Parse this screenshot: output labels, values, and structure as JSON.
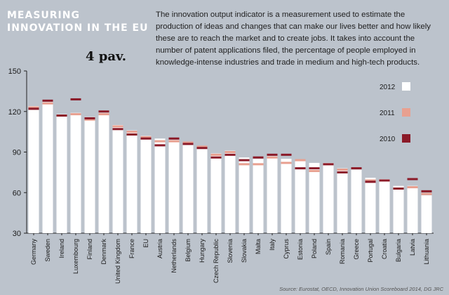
{
  "header": {
    "title_line1": "MEASURING",
    "title_line2": "INNOVATION IN THE EU",
    "description": "The innovation output indicator is a measurement used to estimate the production of ideas and changes that can make our lives better and how likely these are to reach the market and to create jobs. It takes into account the number of patent applications filed, the percentage of people employed in knowledge-intense industries and trade in medium and high-tech products."
  },
  "annotation": "4 pav.",
  "source": "Source: Eurostat, OECD, Innovation Union Scoreboard 2014, DG JRC",
  "colors": {
    "background": "#bcc3cc",
    "bar_2012": "#ffffff",
    "bar_2011": "#e8a090",
    "bar_2010": "#8b1a28"
  },
  "chart_data": {
    "type": "bar",
    "categories": [
      "Germany",
      "Sweden",
      "Ireland",
      "Luxembourg",
      "Finland",
      "Denmark",
      "United Kingdom",
      "France",
      "EU",
      "Austria",
      "Netherlands",
      "Belgium",
      "Hungary",
      "Czech Republic",
      "Slovenia",
      "Slovakia",
      "Malta",
      "Italy",
      "Cyprus",
      "Estonia",
      "Poland",
      "Spain",
      "Romania",
      "Greece",
      "Portugal",
      "Croatia",
      "Bulgaria",
      "Latvia",
      "Lithuania"
    ],
    "series": [
      {
        "name": "2012",
        "values": [
          124,
          127,
          118,
          119,
          116,
          119,
          110,
          106,
          102,
          100,
          99,
          97,
          94,
          89,
          91,
          86,
          85,
          87,
          85,
          84,
          82,
          82,
          78,
          77,
          71,
          70,
          65,
          65,
          58
        ]
      },
      {
        "name": "2011",
        "values": [
          123,
          126,
          117,
          118,
          114,
          118,
          109,
          105,
          101,
          98,
          98,
          97,
          94,
          88,
          90,
          81,
          81,
          86,
          82,
          84,
          76,
          81,
          77,
          78,
          69,
          69,
          63,
          64,
          59
        ]
      },
      {
        "name": "2010",
        "values": [
          122,
          128,
          117,
          129,
          115,
          120,
          107,
          103,
          100,
          95,
          100,
          96,
          93,
          86,
          88,
          84,
          86,
          88,
          88,
          78,
          78,
          81,
          75,
          78,
          68,
          69,
          63,
          70,
          61
        ]
      }
    ],
    "ylim": [
      30,
      150
    ],
    "yticks": [
      30,
      60,
      90,
      120,
      150
    ],
    "legend": [
      "2012",
      "2011",
      "2010"
    ],
    "legend_position": "right",
    "grid": false
  }
}
